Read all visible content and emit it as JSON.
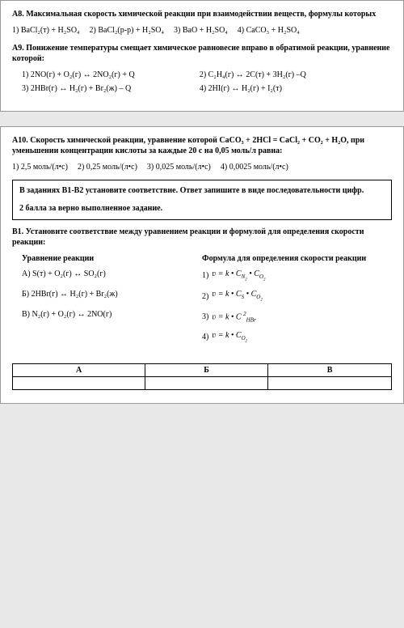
{
  "a8": {
    "title": "А8. Максимальная скорость химической реакции при взаимодействии веществ, формулы которых",
    "opts": [
      "1)  BaCl₂(т) + H₂SO₄",
      "2) BaCl₂(р-р)  + H₂SO₄",
      "3) BaO  + H₂SO₄",
      "4) CaCO₃ +  H₂SO₄"
    ]
  },
  "a9": {
    "title": "А9. Понижение температуры смещает химическое равновесие вправо в обратимой реакции, уравнение которой:",
    "opts": [
      "1) 2NO(г) + O₂(г) ↔ 2NO₂(г) + Q",
      "2) C₂H₄(г) ↔ 2C(т) + 3H₂(г) –Q",
      "3) 2HBr(г) ↔ H₂(г) + Br₂(ж) – Q",
      "4) 2HI(г) ↔ H₂(г) + I₂(т)"
    ]
  },
  "a10": {
    "title": "А10. Скорость химической реакции, уравнение которой  CaCO₃ + 2HCl = CaCl₂  + CO₂ + H₂O, при уменьшении концентрации кислоты за каждые 20 с на 0,05 моль/л равна:",
    "opts": [
      "1) 2,5 моль/(л•с)",
      "2) 0,25 моль/(л•с)",
      "3) 0,025 моль/(л•с)",
      "4) 0,0025 моль/(л•с)"
    ]
  },
  "instr": {
    "line1": "В заданиях В1-В2 установите соответствие.  Ответ запишите в виде последовательности цифр.",
    "line2": "2 балла за верно выполненное задание."
  },
  "b1": {
    "title": "В1. Установите соответствие между уравнением реакции и формулой для определения скорости реакции:",
    "lhs_header": "Уравнение реакции",
    "rhs_header": "Формула для определения скорости реакции",
    "lhs": [
      "А)  S(т) + O₂(г) ↔ SO₂(г)",
      "Б)  2HBr(г) ↔ H₂(г) + Br₂(ж)",
      "В) N₂(г) + O₂(г) ↔ 2NO(г)"
    ],
    "rhs_labels": [
      "1)",
      "2)",
      "3)",
      "4)"
    ],
    "table_headers": [
      "А",
      "Б",
      "В"
    ]
  }
}
